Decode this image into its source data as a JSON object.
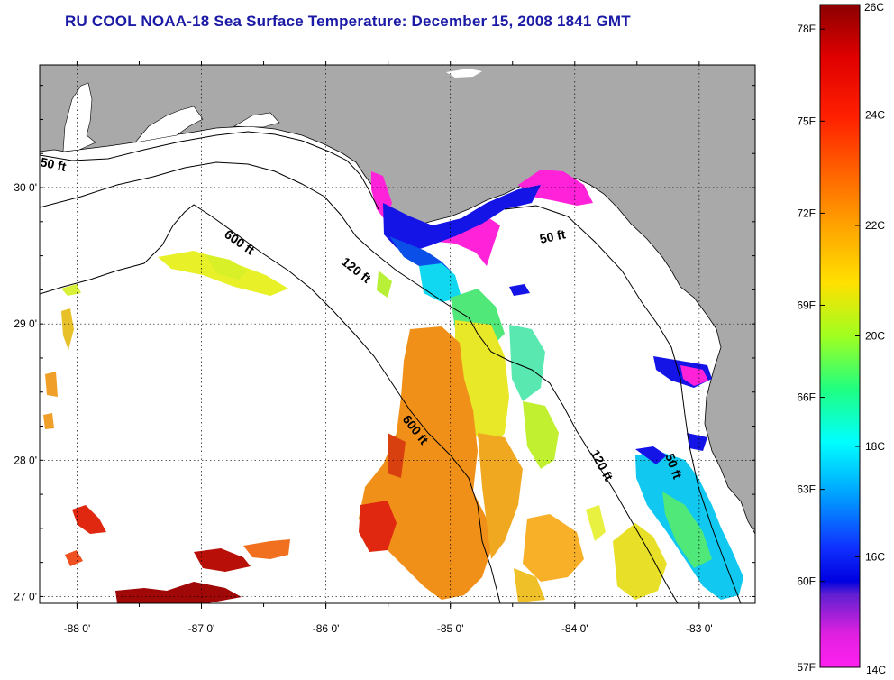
{
  "title": "RU COOL  NOAA-18  Sea Surface Temperature:  December 15, 2008 1841 GMT",
  "map": {
    "lon_range": [
      -88.3,
      -82.55
    ],
    "lat_range": [
      26.95,
      30.9
    ],
    "lon_ticks": [
      {
        "value": -88,
        "label": "-88 0'"
      },
      {
        "value": -87,
        "label": "-87 0'"
      },
      {
        "value": -86,
        "label": "-86 0'"
      },
      {
        "value": -85,
        "label": "-85 0'"
      },
      {
        "value": -84,
        "label": "-84 0'"
      },
      {
        "value": -83,
        "label": "-83 0'"
      }
    ],
    "lat_ticks": [
      {
        "value": 30,
        "label": "30 0'"
      },
      {
        "value": 29,
        "label": "29 0'"
      },
      {
        "value": 28,
        "label": "28 0'"
      },
      {
        "value": 27,
        "label": "27 0'"
      }
    ],
    "contour_labels": [
      {
        "text": "50 ft",
        "name": "contour-label-50ft-west"
      },
      {
        "text": "600 ft",
        "name": "contour-label-600ft-north"
      },
      {
        "text": "120 ft",
        "name": "contour-label-120ft-north"
      },
      {
        "text": "50 ft",
        "name": "contour-label-50ft-bigbend"
      },
      {
        "text": "600 ft",
        "name": "contour-label-600ft-south"
      },
      {
        "text": "120 ft",
        "name": "contour-label-120ft-south"
      },
      {
        "text": "50 ft",
        "name": "contour-label-50ft-south"
      }
    ],
    "land_color": "#a9a9a9",
    "water_color": "#ffffff"
  },
  "colorbar": {
    "top_label_c": "26C",
    "bottom_label_c": "14C",
    "celsius_labels": [
      "24C",
      "22C",
      "20C",
      "18C",
      "16C"
    ],
    "fahrenheit_labels": [
      "78F",
      "75F",
      "72F",
      "69F",
      "66F",
      "63F",
      "60F",
      "57F"
    ],
    "range_c": [
      14,
      26
    ]
  },
  "colors": {
    "title": "#1a1aa6",
    "magenta": "#ff22d8",
    "blue": "#1414e6",
    "cyan": "#10d8f0",
    "green": "#50e878",
    "yellow": "#e8f028",
    "orange": "#f09018",
    "red": "#e02810",
    "darkred": "#a00808"
  }
}
